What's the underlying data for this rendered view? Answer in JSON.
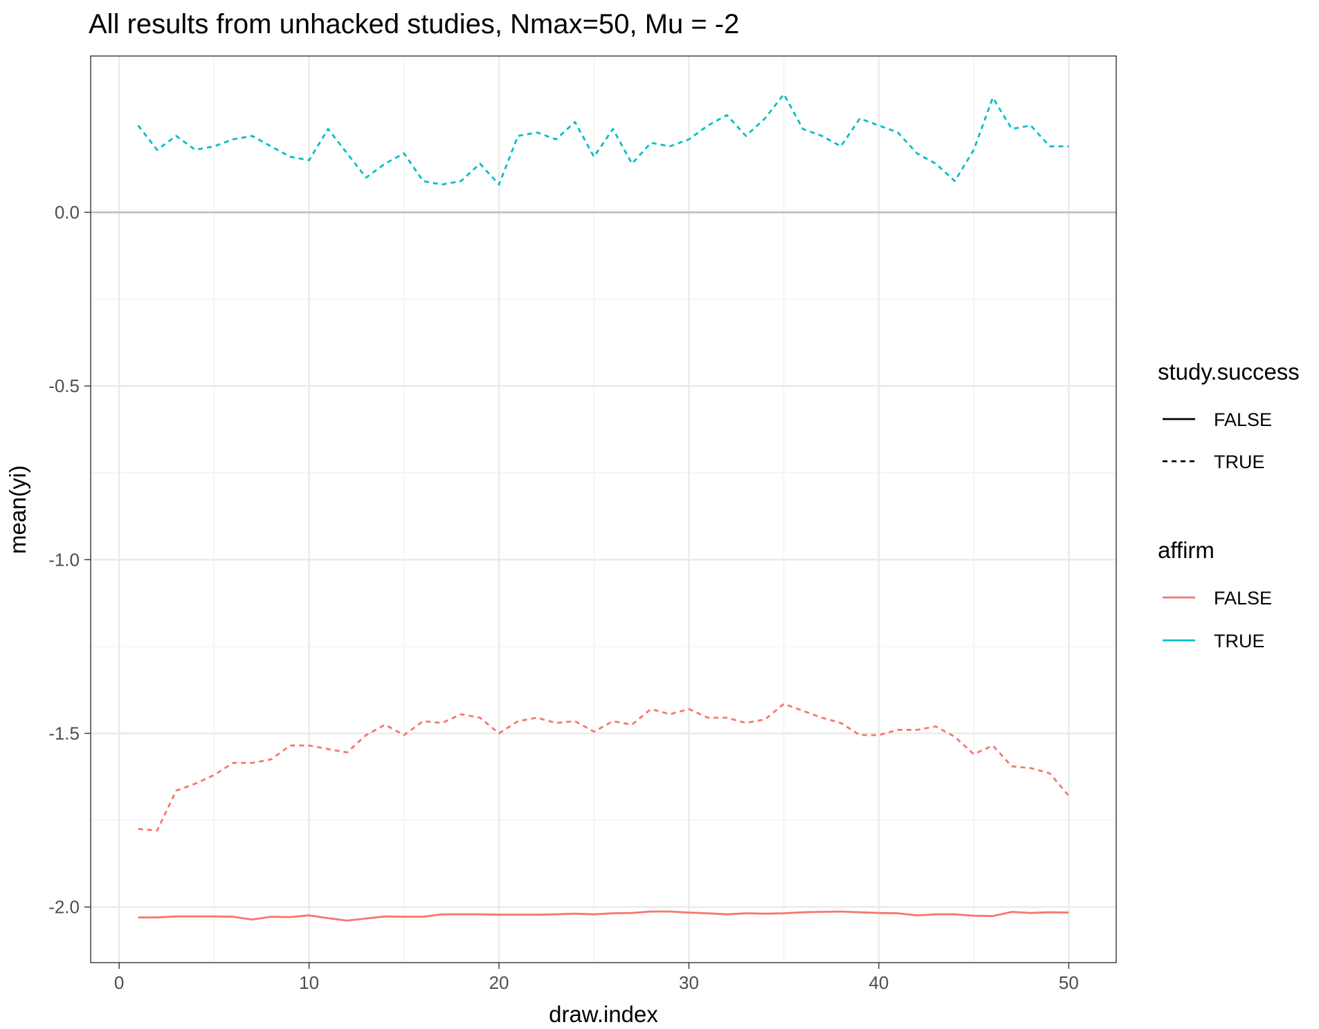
{
  "chart_data": {
    "type": "line",
    "title": "All results from unhacked studies, Nmax=50, Mu = -2",
    "xlabel": "draw.index",
    "ylabel": "mean(yi)",
    "xlim": [
      -1.5,
      52.5
    ],
    "ylim": [
      -2.16,
      0.45
    ],
    "x_ticks": [
      0,
      10,
      20,
      30,
      40,
      50
    ],
    "x_tick_labels": [
      "0",
      "10",
      "20",
      "30",
      "40",
      "50"
    ],
    "y_ticks": [
      0.0,
      -0.5,
      -1.0,
      -1.5,
      -2.0
    ],
    "y_tick_labels": [
      "0.0",
      "-0.5",
      "-1.0",
      "-1.5",
      "-2.0"
    ],
    "reference_line_y": 0,
    "grid": true,
    "legend_position": "right",
    "legends": [
      {
        "title": "study.success",
        "kind": "linetype",
        "entries": [
          {
            "label": "FALSE",
            "linetype": "solid"
          },
          {
            "label": "TRUE",
            "linetype": "dashed"
          }
        ]
      },
      {
        "title": "affirm",
        "kind": "color",
        "entries": [
          {
            "label": "FALSE",
            "color": "#f8766d"
          },
          {
            "label": "TRUE",
            "color": "#00bfc4"
          }
        ]
      }
    ],
    "x": [
      1,
      2,
      3,
      4,
      5,
      6,
      7,
      8,
      9,
      10,
      11,
      12,
      13,
      14,
      15,
      16,
      17,
      18,
      19,
      20,
      21,
      22,
      23,
      24,
      25,
      26,
      27,
      28,
      29,
      30,
      31,
      32,
      33,
      34,
      35,
      36,
      37,
      38,
      39,
      40,
      41,
      42,
      43,
      44,
      45,
      46,
      47,
      48,
      49,
      50
    ],
    "series": [
      {
        "affirm": "TRUE",
        "study_success": "TRUE",
        "color": "#00bfc4",
        "linetype": "dashed",
        "values": [
          0.25,
          0.18,
          0.22,
          0.18,
          0.19,
          0.21,
          0.22,
          0.19,
          0.16,
          0.15,
          0.24,
          0.17,
          0.1,
          0.14,
          0.17,
          0.09,
          0.08,
          0.09,
          0.14,
          0.08,
          0.22,
          0.23,
          0.21,
          0.26,
          0.16,
          0.24,
          0.14,
          0.2,
          0.19,
          0.21,
          0.25,
          0.28,
          0.22,
          0.27,
          0.34,
          0.24,
          0.22,
          0.19,
          0.27,
          0.25,
          0.23,
          0.17,
          0.14,
          0.09,
          0.18,
          0.33,
          0.24,
          0.25,
          0.19,
          0.19
        ]
      },
      {
        "affirm": "FALSE",
        "study_success": "TRUE",
        "color": "#f8766d",
        "linetype": "dashed",
        "values": [
          -1.775,
          -1.78,
          -1.665,
          -1.645,
          -1.62,
          -1.585,
          -1.585,
          -1.575,
          -1.535,
          -1.535,
          -1.545,
          -1.555,
          -1.505,
          -1.475,
          -1.505,
          -1.465,
          -1.47,
          -1.445,
          -1.455,
          -1.5,
          -1.465,
          -1.455,
          -1.47,
          -1.465,
          -1.495,
          -1.465,
          -1.475,
          -1.43,
          -1.445,
          -1.43,
          -1.455,
          -1.455,
          -1.47,
          -1.46,
          -1.415,
          -1.435,
          -1.455,
          -1.47,
          -1.505,
          -1.505,
          -1.49,
          -1.49,
          -1.48,
          -1.51,
          -1.56,
          -1.535,
          -1.595,
          -1.6,
          -1.615,
          -1.68
        ]
      },
      {
        "affirm": "FALSE",
        "study_success": "FALSE",
        "color": "#f8766d",
        "linetype": "solid",
        "values": [
          -2.03,
          -2.03,
          -2.027,
          -2.027,
          -2.027,
          -2.028,
          -2.036,
          -2.028,
          -2.029,
          -2.024,
          -2.032,
          -2.039,
          -2.033,
          -2.027,
          -2.028,
          -2.028,
          -2.021,
          -2.021,
          -2.021,
          -2.022,
          -2.022,
          -2.022,
          -2.021,
          -2.019,
          -2.021,
          -2.018,
          -2.017,
          -2.013,
          -2.013,
          -2.016,
          -2.018,
          -2.021,
          -2.018,
          -2.019,
          -2.018,
          -2.015,
          -2.014,
          -2.013,
          -2.015,
          -2.017,
          -2.018,
          -2.024,
          -2.021,
          -2.021,
          -2.025,
          -2.026,
          -2.014,
          -2.017,
          -2.015,
          -2.016
        ]
      }
    ]
  }
}
